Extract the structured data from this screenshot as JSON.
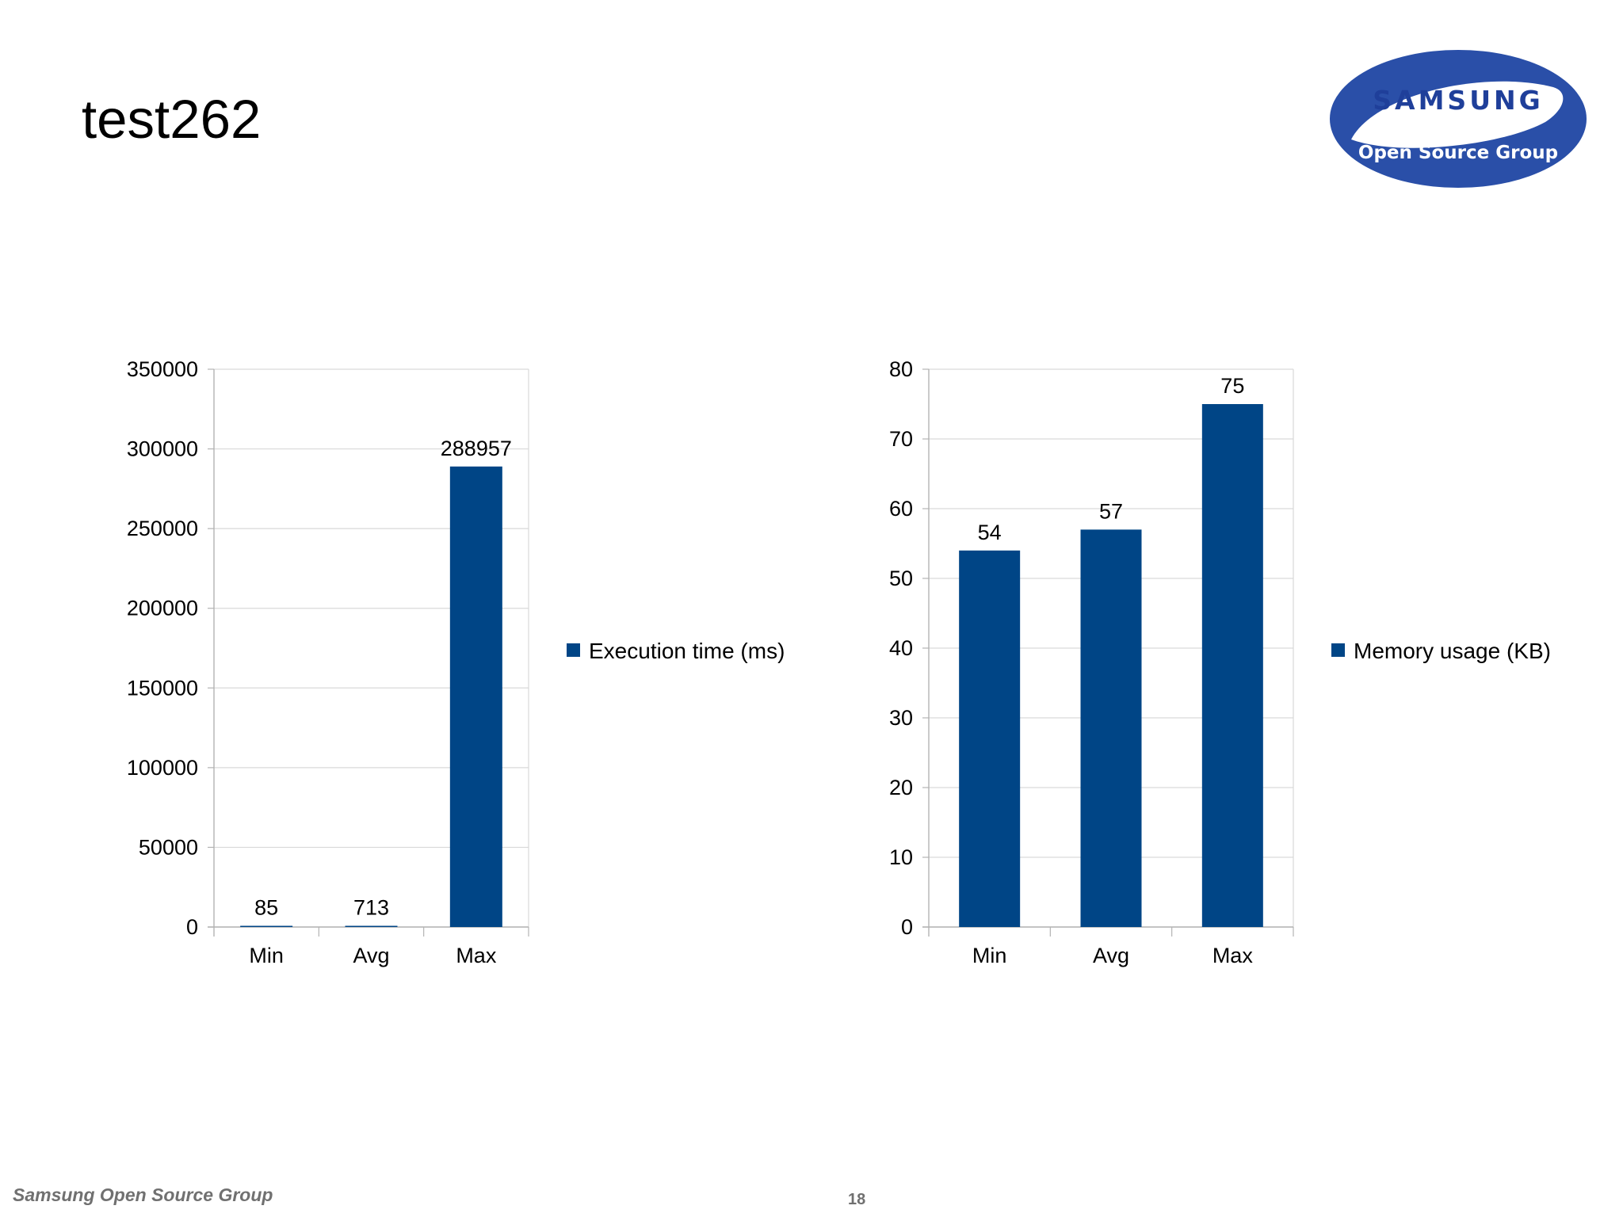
{
  "slide": {
    "title": "test262",
    "footer_left": "Samsung Open Source Group",
    "page_number": "18"
  },
  "logo": {
    "top_text": "SAMSUNG",
    "bottom_text": "Open Source Group",
    "color_blue": "#2a4fa8",
    "color_white": "#ffffff"
  },
  "colors": {
    "bar": "#004586",
    "grid": "#d9d9d9",
    "axis": "#b3b3b3"
  },
  "chart_data": [
    {
      "type": "bar",
      "title": "",
      "categories": [
        "Min",
        "Avg",
        "Max"
      ],
      "series": [
        {
          "name": "Execution time (ms)",
          "values": [
            85,
            713,
            288957
          ]
        }
      ],
      "data_labels": [
        "85",
        "713",
        "288957"
      ],
      "ylim": [
        0,
        350000
      ],
      "yticks": [
        0,
        50000,
        100000,
        150000,
        200000,
        250000,
        300000,
        350000
      ],
      "ytick_labels": [
        "0",
        "50000",
        "100000",
        "150000",
        "200000",
        "250000",
        "300000",
        "350000"
      ],
      "xlabel": "",
      "ylabel": "",
      "grid": true,
      "legend": "right"
    },
    {
      "type": "bar",
      "title": "",
      "categories": [
        "Min",
        "Avg",
        "Max"
      ],
      "series": [
        {
          "name": "Memory usage (KB)",
          "values": [
            54,
            57,
            75
          ]
        }
      ],
      "data_labels": [
        "54",
        "57",
        "75"
      ],
      "ylim": [
        0,
        80
      ],
      "yticks": [
        0,
        10,
        20,
        30,
        40,
        50,
        60,
        70,
        80
      ],
      "ytick_labels": [
        "0",
        "10",
        "20",
        "30",
        "40",
        "50",
        "60",
        "70",
        "80"
      ],
      "xlabel": "",
      "ylabel": "",
      "grid": true,
      "legend": "right"
    }
  ]
}
